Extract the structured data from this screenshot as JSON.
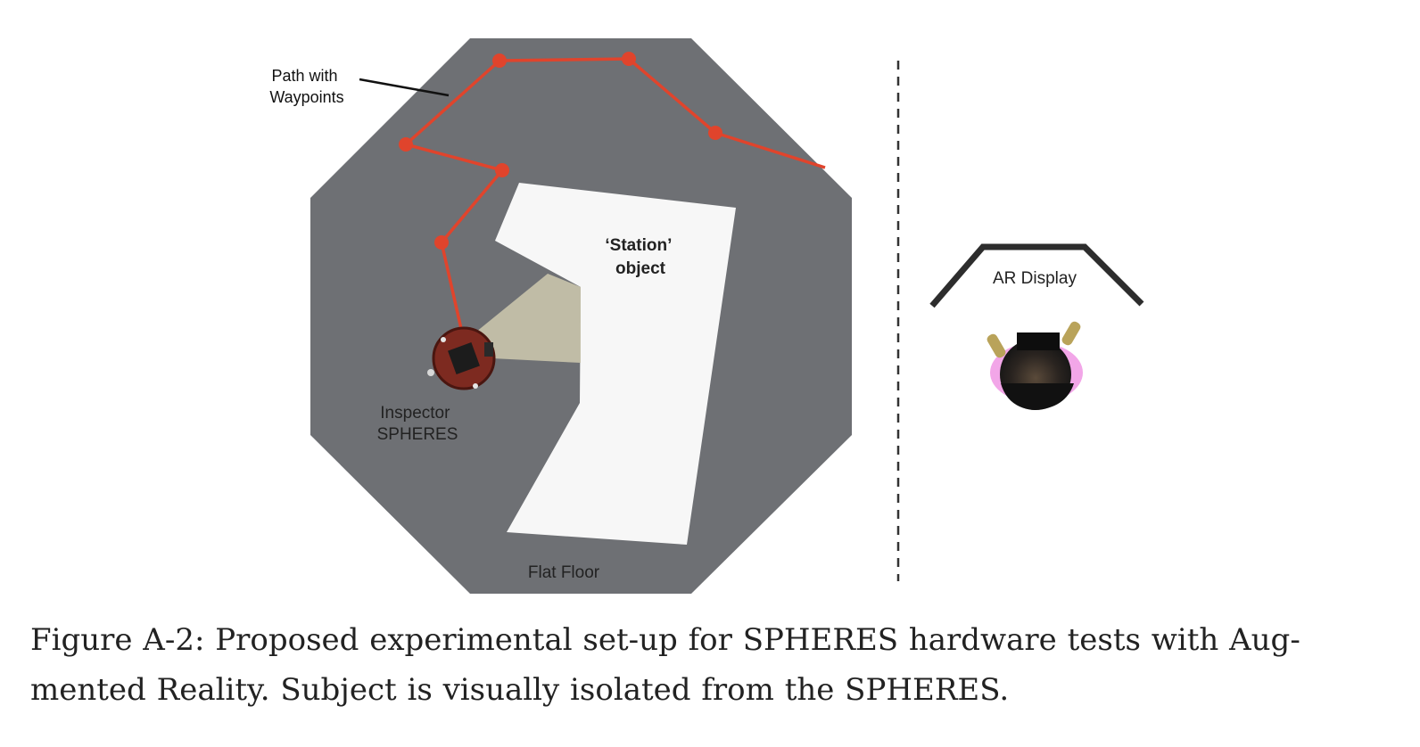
{
  "figure": {
    "labels": {
      "path": [
        "Path with",
        "Waypoints"
      ],
      "station": [
        "‘Station’",
        "object"
      ],
      "inspector": [
        "Inspector",
        "SPHERES"
      ],
      "floor": "Flat Floor",
      "display": "AR Display"
    },
    "colors": {
      "floor": "#6e7074",
      "path": "#e0442c",
      "station": "#f7f7f7",
      "view_cone": "#c7c2aa",
      "robot": "#7d2a20",
      "divider": "#333333"
    }
  },
  "caption": {
    "lines": [
      "Figure A-2: Proposed experimental set-up for SPHERES hardware tests with Aug-",
      "mented Reality. Subject is visually isolated from the SPHERES."
    ]
  }
}
